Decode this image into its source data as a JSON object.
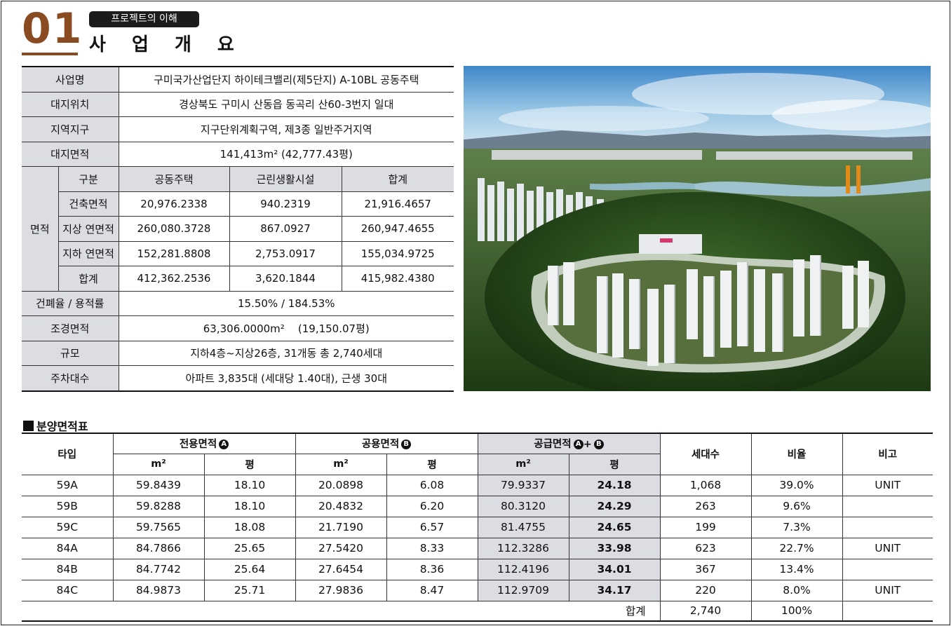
{
  "header": {
    "section_number": "01",
    "tag": "프로젝트의 이해",
    "title": "사 업 개 요"
  },
  "overview": {
    "rows": [
      {
        "label": "사업명",
        "value": "구미국가산업단지 하이테크밸리(제5단지) A-10BL 공동주택"
      },
      {
        "label": "대지위치",
        "value": "경상북도 구미시 산동읍 동곡리 산60-3번지 일대"
      },
      {
        "label": "지역지구",
        "value": "지구단위계획구역, 제3종 일반주거지역"
      },
      {
        "label": "대지면적",
        "value": "141,413m² (42,777.43평)"
      }
    ],
    "area_group_label": "면적",
    "area_headers": [
      "구분",
      "공동주택",
      "근린생활시설",
      "합계"
    ],
    "area_rows": [
      {
        "label": "건축면적",
        "values": [
          "20,976.2338",
          "940.2319",
          "21,916.4657"
        ]
      },
      {
        "label": "지상 연면적",
        "values": [
          "260,080.3728",
          "867.0927",
          "260,947.4655"
        ]
      },
      {
        "label": "지하 연면적",
        "values": [
          "152,281.8808",
          "2,753.0917",
          "155,034.9725"
        ]
      },
      {
        "label": "합계",
        "values": [
          "412,362.2536",
          "3,620.1844",
          "415,982.4380"
        ]
      }
    ],
    "rows_after": [
      {
        "label": "건폐율 / 용적률",
        "value": "15.50% / 184.53%"
      },
      {
        "label": "조경면적",
        "value": "63,306.0000m²    (19,150.07평)"
      },
      {
        "label": "규모",
        "value": "지하4층~지상26층, 31개동 총 2,740세대"
      },
      {
        "label": "주차대수",
        "value": "아파트 3,835대 (세대당 1.40대), 근생 30대"
      }
    ]
  },
  "area_table": {
    "heading": "분양면적표",
    "col_type": "타입",
    "col_exclusive": "전용면적",
    "col_common": "공용면적",
    "col_supply": "공급면적",
    "badge_a": "A",
    "badge_b": "B",
    "plus": "+",
    "col_households": "세대수",
    "col_ratio": "비율",
    "col_note": "비고",
    "unit_m2": "m²",
    "unit_pyeong": "평",
    "rows": [
      {
        "type": "59A",
        "ex_m2": "59.8439",
        "ex_py": "18.10",
        "co_m2": "20.0898",
        "co_py": "6.08",
        "su_m2": "79.9337",
        "su_py": "24.18",
        "households": "1,068",
        "ratio": "39.0%",
        "note": "UNIT"
      },
      {
        "type": "59B",
        "ex_m2": "59.8288",
        "ex_py": "18.10",
        "co_m2": "20.4832",
        "co_py": "6.20",
        "su_m2": "80.3120",
        "su_py": "24.29",
        "households": "263",
        "ratio": "9.6%",
        "note": ""
      },
      {
        "type": "59C",
        "ex_m2": "59.7565",
        "ex_py": "18.08",
        "co_m2": "21.7190",
        "co_py": "6.57",
        "su_m2": "81.4755",
        "su_py": "24.65",
        "households": "199",
        "ratio": "7.3%",
        "note": ""
      },
      {
        "type": "84A",
        "ex_m2": "84.7866",
        "ex_py": "25.65",
        "co_m2": "27.5420",
        "co_py": "8.33",
        "su_m2": "112.3286",
        "su_py": "33.98",
        "households": "623",
        "ratio": "22.7%",
        "note": "UNIT"
      },
      {
        "type": "84B",
        "ex_m2": "84.7742",
        "ex_py": "25.64",
        "co_m2": "27.6454",
        "co_py": "8.36",
        "su_m2": "112.4196",
        "su_py": "34.01",
        "households": "367",
        "ratio": "13.4%",
        "note": ""
      },
      {
        "type": "84C",
        "ex_m2": "84.9873",
        "ex_py": "25.71",
        "co_m2": "27.9836",
        "co_py": "8.47",
        "su_m2": "112.9709",
        "su_py": "34.17",
        "households": "220",
        "ratio": "8.0%",
        "note": "UNIT"
      }
    ],
    "total": {
      "label": "합계",
      "households": "2,740",
      "ratio": "100%"
    }
  }
}
